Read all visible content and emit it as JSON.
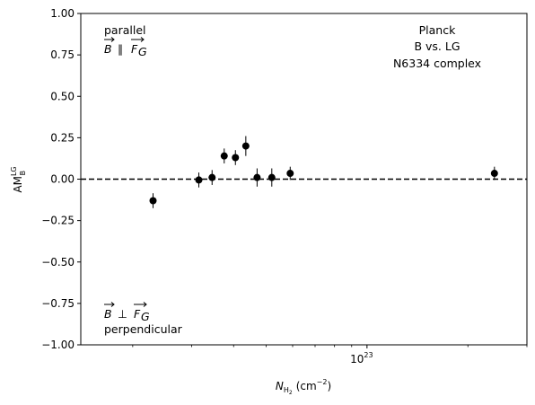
{
  "chart_data": {
    "type": "scatter",
    "title": "",
    "xlabel": {
      "base": "N",
      "subscript": "H",
      "subsub": "2",
      "unit": "(cm",
      "unit_exp": "−2",
      "unit_close": ")"
    },
    "ylabel": {
      "base": "AM",
      "sup": "LG",
      "sub": "B"
    },
    "x_scale": "log",
    "xlim": [
      1.4e+22,
      3e+23
    ],
    "ylim": [
      -1.0,
      1.0
    ],
    "y_ticks": [
      "−1.00",
      "−0.75",
      "−0.50",
      "−0.25",
      "0.00",
      "0.25",
      "0.50",
      "0.75",
      "1.00"
    ],
    "y_tick_values": [
      -1.0,
      -0.75,
      -0.5,
      -0.25,
      0.0,
      0.25,
      0.5,
      0.75,
      1.0
    ],
    "x_ticks": [
      {
        "value": 1e+23,
        "base": "10",
        "exp": "23"
      }
    ],
    "reference_line": {
      "y": 0.0,
      "style": "dashed"
    },
    "points": [
      {
        "x": 2.3e+22,
        "y": -0.13,
        "err": 0.045
      },
      {
        "x": 3.15e+22,
        "y": -0.005,
        "err": 0.045
      },
      {
        "x": 3.45e+22,
        "y": 0.01,
        "err": 0.045
      },
      {
        "x": 3.75e+22,
        "y": 0.14,
        "err": 0.045
      },
      {
        "x": 4.05e+22,
        "y": 0.13,
        "err": 0.045
      },
      {
        "x": 4.35e+22,
        "y": 0.2,
        "err": 0.06
      },
      {
        "x": 4.7e+22,
        "y": 0.01,
        "err": 0.055
      },
      {
        "x": 5.2e+22,
        "y": 0.01,
        "err": 0.055
      },
      {
        "x": 5.9e+22,
        "y": 0.035,
        "err": 0.04
      },
      {
        "x": 2.4e+23,
        "y": 0.035,
        "err": 0.04
      }
    ],
    "grid": false,
    "color": "#000000"
  },
  "annotations": {
    "parallel_label": "parallel",
    "parallel_symbol": "∥",
    "perp_symbol": "⊥",
    "perp_label": "perpendicular",
    "vec_b": "B",
    "vec_f": "F",
    "vec_f_sub": "G",
    "source_lines": [
      "Planck",
      "B vs. LG",
      "N6334 complex"
    ]
  }
}
